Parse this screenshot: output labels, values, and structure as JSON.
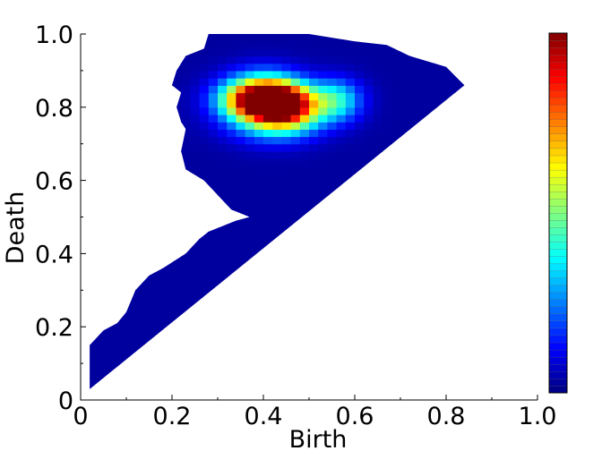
{
  "chart_data": {
    "type": "heatmap",
    "title": "",
    "xlabel": "Birth",
    "ylabel": "Death",
    "xlim": [
      0,
      1
    ],
    "ylim": [
      0,
      1
    ],
    "x_ticks": [
      "0",
      "0.2",
      "0.4",
      "0.6",
      "0.8",
      "1.0"
    ],
    "y_ticks": [
      "0",
      "0.2",
      "0.4",
      "0.6",
      "0.8",
      "1.0"
    ],
    "colormap": "jet",
    "colorbar": {
      "range": [
        0,
        1
      ],
      "levels": 50,
      "tick_labels": []
    },
    "grid": false,
    "support_outline": [
      [
        0.02,
        0.03
      ],
      [
        0.84,
        0.86
      ],
      [
        0.8,
        0.91
      ],
      [
        0.72,
        0.94
      ],
      [
        0.67,
        0.97
      ],
      [
        0.6,
        0.98
      ],
      [
        0.5,
        1.0
      ],
      [
        0.3,
        1.0
      ],
      [
        0.28,
        1.0
      ],
      [
        0.27,
        0.96
      ],
      [
        0.23,
        0.94
      ],
      [
        0.21,
        0.9
      ],
      [
        0.2,
        0.86
      ],
      [
        0.22,
        0.84
      ],
      [
        0.21,
        0.8
      ],
      [
        0.22,
        0.76
      ],
      [
        0.23,
        0.74
      ],
      [
        0.22,
        0.68
      ],
      [
        0.23,
        0.63
      ],
      [
        0.27,
        0.6
      ],
      [
        0.3,
        0.56
      ],
      [
        0.33,
        0.52
      ],
      [
        0.35,
        0.51
      ],
      [
        0.37,
        0.5
      ],
      [
        0.34,
        0.49
      ],
      [
        0.28,
        0.46
      ],
      [
        0.26,
        0.44
      ],
      [
        0.23,
        0.4
      ],
      [
        0.18,
        0.36
      ],
      [
        0.15,
        0.34
      ],
      [
        0.12,
        0.3
      ],
      [
        0.1,
        0.24
      ],
      [
        0.08,
        0.21
      ],
      [
        0.05,
        0.19
      ],
      [
        0.02,
        0.15
      ]
    ],
    "density_blobs": [
      {
        "x": 0.4,
        "y": 0.82,
        "value": 1.0,
        "sx": 0.06,
        "sy": 0.035
      },
      {
        "x": 0.45,
        "y": 0.8,
        "value": 0.55,
        "sx": 0.05,
        "sy": 0.04
      },
      {
        "x": 0.56,
        "y": 0.82,
        "value": 0.35,
        "sx": 0.04,
        "sy": 0.04
      },
      {
        "x": 0.42,
        "y": 0.76,
        "value": 0.3,
        "sx": 0.07,
        "sy": 0.04
      },
      {
        "x": 0.4,
        "y": 0.86,
        "value": 0.25,
        "sx": 0.06,
        "sy": 0.04
      }
    ],
    "baseline_value": 0.03
  }
}
